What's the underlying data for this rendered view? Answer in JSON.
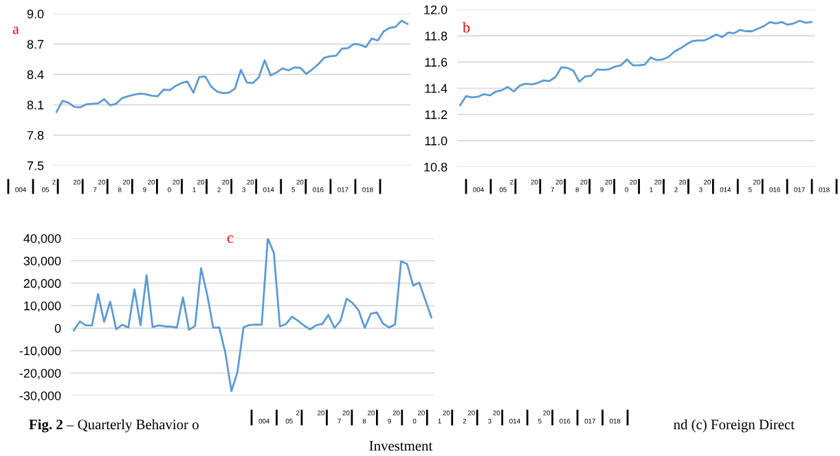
{
  "chart_data": [
    {
      "type": "line",
      "categories": [
        null,
        null,
        null,
        null,
        null,
        null,
        null,
        null,
        null,
        null,
        null,
        null,
        null,
        null,
        null,
        null,
        null,
        null,
        null,
        null,
        null,
        null,
        null,
        null,
        null,
        null,
        null,
        null,
        null,
        null,
        null,
        null,
        null,
        null,
        null,
        null,
        null,
        null,
        null,
        null,
        null,
        null,
        null,
        null,
        null,
        null,
        null,
        null,
        null,
        null,
        null,
        null,
        null,
        null,
        null,
        null,
        null,
        null,
        null,
        null
      ],
      "series": [
        {
          "color": "#5b9bd5",
          "values": [
            8.03,
            8.14,
            8.12,
            8.08,
            8.075,
            8.105,
            8.11,
            8.115,
            8.155,
            8.095,
            8.11,
            8.165,
            8.185,
            8.2,
            8.21,
            8.205,
            8.19,
            8.185,
            8.25,
            8.245,
            8.285,
            8.315,
            8.33,
            8.22,
            8.375,
            8.38,
            8.28,
            8.23,
            8.215,
            8.22,
            8.26,
            8.445,
            8.32,
            8.315,
            8.37,
            8.54,
            8.39,
            8.42,
            8.46,
            8.44,
            8.47,
            8.465,
            8.405,
            8.45,
            8.5,
            8.565,
            8.58,
            8.585,
            8.655,
            8.66,
            8.7,
            8.695,
            8.67,
            8.755,
            8.735,
            8.825,
            8.86,
            8.87,
            8.93,
            8.9
          ]
        }
      ],
      "ylim": [
        7.5,
        9.0
      ],
      "yticks": [
        {
          "value": 7.5,
          "label": "7.5"
        },
        {
          "value": 7.8,
          "label": "7.8"
        },
        {
          "value": 8.1,
          "label": "8.1"
        },
        {
          "value": 8.4,
          "label": "8.4"
        },
        {
          "value": 8.7,
          "label": "8.7"
        },
        {
          "value": 9.0,
          "label": "9.0"
        }
      ],
      "grid": "y",
      "tick_labels": "y",
      "annotations": [
        "a",
        "004",
        "2\n05",
        "20",
        "20\n7",
        "20\n8",
        "20\n9",
        "20\n0",
        "20\n1",
        "20\n2",
        "20\n3",
        "014",
        "20\n5",
        "016",
        "017",
        "018"
      ]
    },
    {
      "type": "line",
      "categories": [
        null,
        null,
        null,
        null,
        null,
        null,
        null,
        null,
        null,
        null,
        null,
        null,
        null,
        null,
        null,
        null,
        null,
        null,
        null,
        null,
        null,
        null,
        null,
        null,
        null,
        null,
        null,
        null,
        null,
        null,
        null,
        null,
        null,
        null,
        null,
        null,
        null,
        null,
        null,
        null,
        null,
        null,
        null,
        null,
        null,
        null,
        null,
        null,
        null,
        null,
        null,
        null,
        null,
        null,
        null,
        null,
        null,
        null,
        null,
        null
      ],
      "series": [
        {
          "color": "#5b9bd5",
          "values": [
            11.27,
            11.34,
            11.33,
            11.335,
            11.355,
            11.345,
            11.375,
            11.385,
            11.41,
            11.375,
            11.42,
            11.435,
            11.43,
            11.44,
            11.46,
            11.455,
            11.485,
            11.56,
            11.555,
            11.535,
            11.45,
            11.49,
            11.495,
            11.545,
            11.54,
            11.545,
            11.565,
            11.575,
            11.62,
            11.575,
            11.575,
            11.58,
            11.635,
            11.615,
            11.62,
            11.64,
            11.68,
            11.705,
            11.735,
            11.76,
            11.765,
            11.765,
            11.785,
            11.81,
            11.79,
            11.825,
            11.82,
            11.845,
            11.835,
            11.835,
            11.855,
            11.875,
            11.905,
            11.895,
            11.905,
            11.885,
            11.895,
            11.915,
            11.9,
            11.905
          ]
        }
      ],
      "ylim": [
        10.8,
        12.0
      ],
      "yticks": [
        {
          "value": 10.8,
          "label": "10.8"
        },
        {
          "value": 11.0,
          "label": "11.0"
        },
        {
          "value": 11.2,
          "label": "11.2"
        },
        {
          "value": 11.4,
          "label": "11.4"
        },
        {
          "value": 11.6,
          "label": "11.6"
        },
        {
          "value": 11.8,
          "label": "11.8"
        },
        {
          "value": 12.0,
          "label": "12.0"
        }
      ],
      "grid": "y",
      "tick_labels": "y",
      "annotations": [
        "b",
        "004",
        "2\n05",
        "20",
        "20\n7",
        "20\n8",
        "20\n9",
        "20\n0",
        "20\n1",
        "20\n2",
        "20\n3",
        "014",
        "20\n5",
        "016",
        "017",
        "018"
      ]
    },
    {
      "type": "line",
      "categories": [
        null,
        null,
        null,
        null,
        null,
        null,
        null,
        null,
        null,
        null,
        null,
        null,
        null,
        null,
        null,
        null,
        null,
        null,
        null,
        null,
        null,
        null,
        null,
        null,
        null,
        null,
        null,
        null,
        null,
        null,
        null,
        null,
        null,
        null,
        null,
        null,
        null,
        null,
        null,
        null,
        null,
        null,
        null,
        null,
        null,
        null,
        null,
        null,
        null,
        null,
        null,
        null,
        null,
        null,
        null,
        null,
        null,
        null,
        null,
        null
      ],
      "series": [
        {
          "color": "#5b9bd5",
          "values": [
            -1000,
            3000,
            1200,
            1200,
            15200,
            2800,
            11800,
            -500,
            1500,
            300,
            17300,
            1300,
            23500,
            500,
            1200,
            800,
            700,
            200,
            13700,
            -700,
            1000,
            26700,
            15000,
            200,
            300,
            -11000,
            -28000,
            -19500,
            400,
            1400,
            1600,
            1500,
            40000,
            33500,
            800,
            1800,
            5100,
            3300,
            1100,
            -500,
            1300,
            1900,
            5900,
            100,
            3300,
            13100,
            11200,
            7900,
            100,
            6400,
            7000,
            2100,
            300,
            1600,
            29800,
            28500,
            18900,
            20300,
            12500,
            4800
          ]
        }
      ],
      "ylim": [
        -30000,
        40000
      ],
      "yticks": [
        {
          "value": -30000,
          "label": "-30,000"
        },
        {
          "value": -20000,
          "label": "-20,000"
        },
        {
          "value": -10000,
          "label": "-10,000"
        },
        {
          "value": 0,
          "label": "0"
        },
        {
          "value": 10000,
          "label": "10,000"
        },
        {
          "value": 20000,
          "label": "20,000"
        },
        {
          "value": 30000,
          "label": "30,000"
        },
        {
          "value": 40000,
          "label": "40,000"
        }
      ],
      "grid": "y",
      "tick_labels": "y",
      "annotations": [
        "c",
        "004",
        "2\n05",
        "20",
        "20\n7",
        "20\n8",
        "20\n9",
        "20\n0",
        "20\n1",
        "20\n2",
        "20\n3",
        "014",
        "20\n5",
        "016",
        "017",
        "018"
      ]
    },
    {
      "type": "other",
      "annotations": [
        "Fig. 2",
        " – Quarterly Behavior o",
        "nd (c) Foreign Direct",
        "Investment"
      ]
    }
  ]
}
